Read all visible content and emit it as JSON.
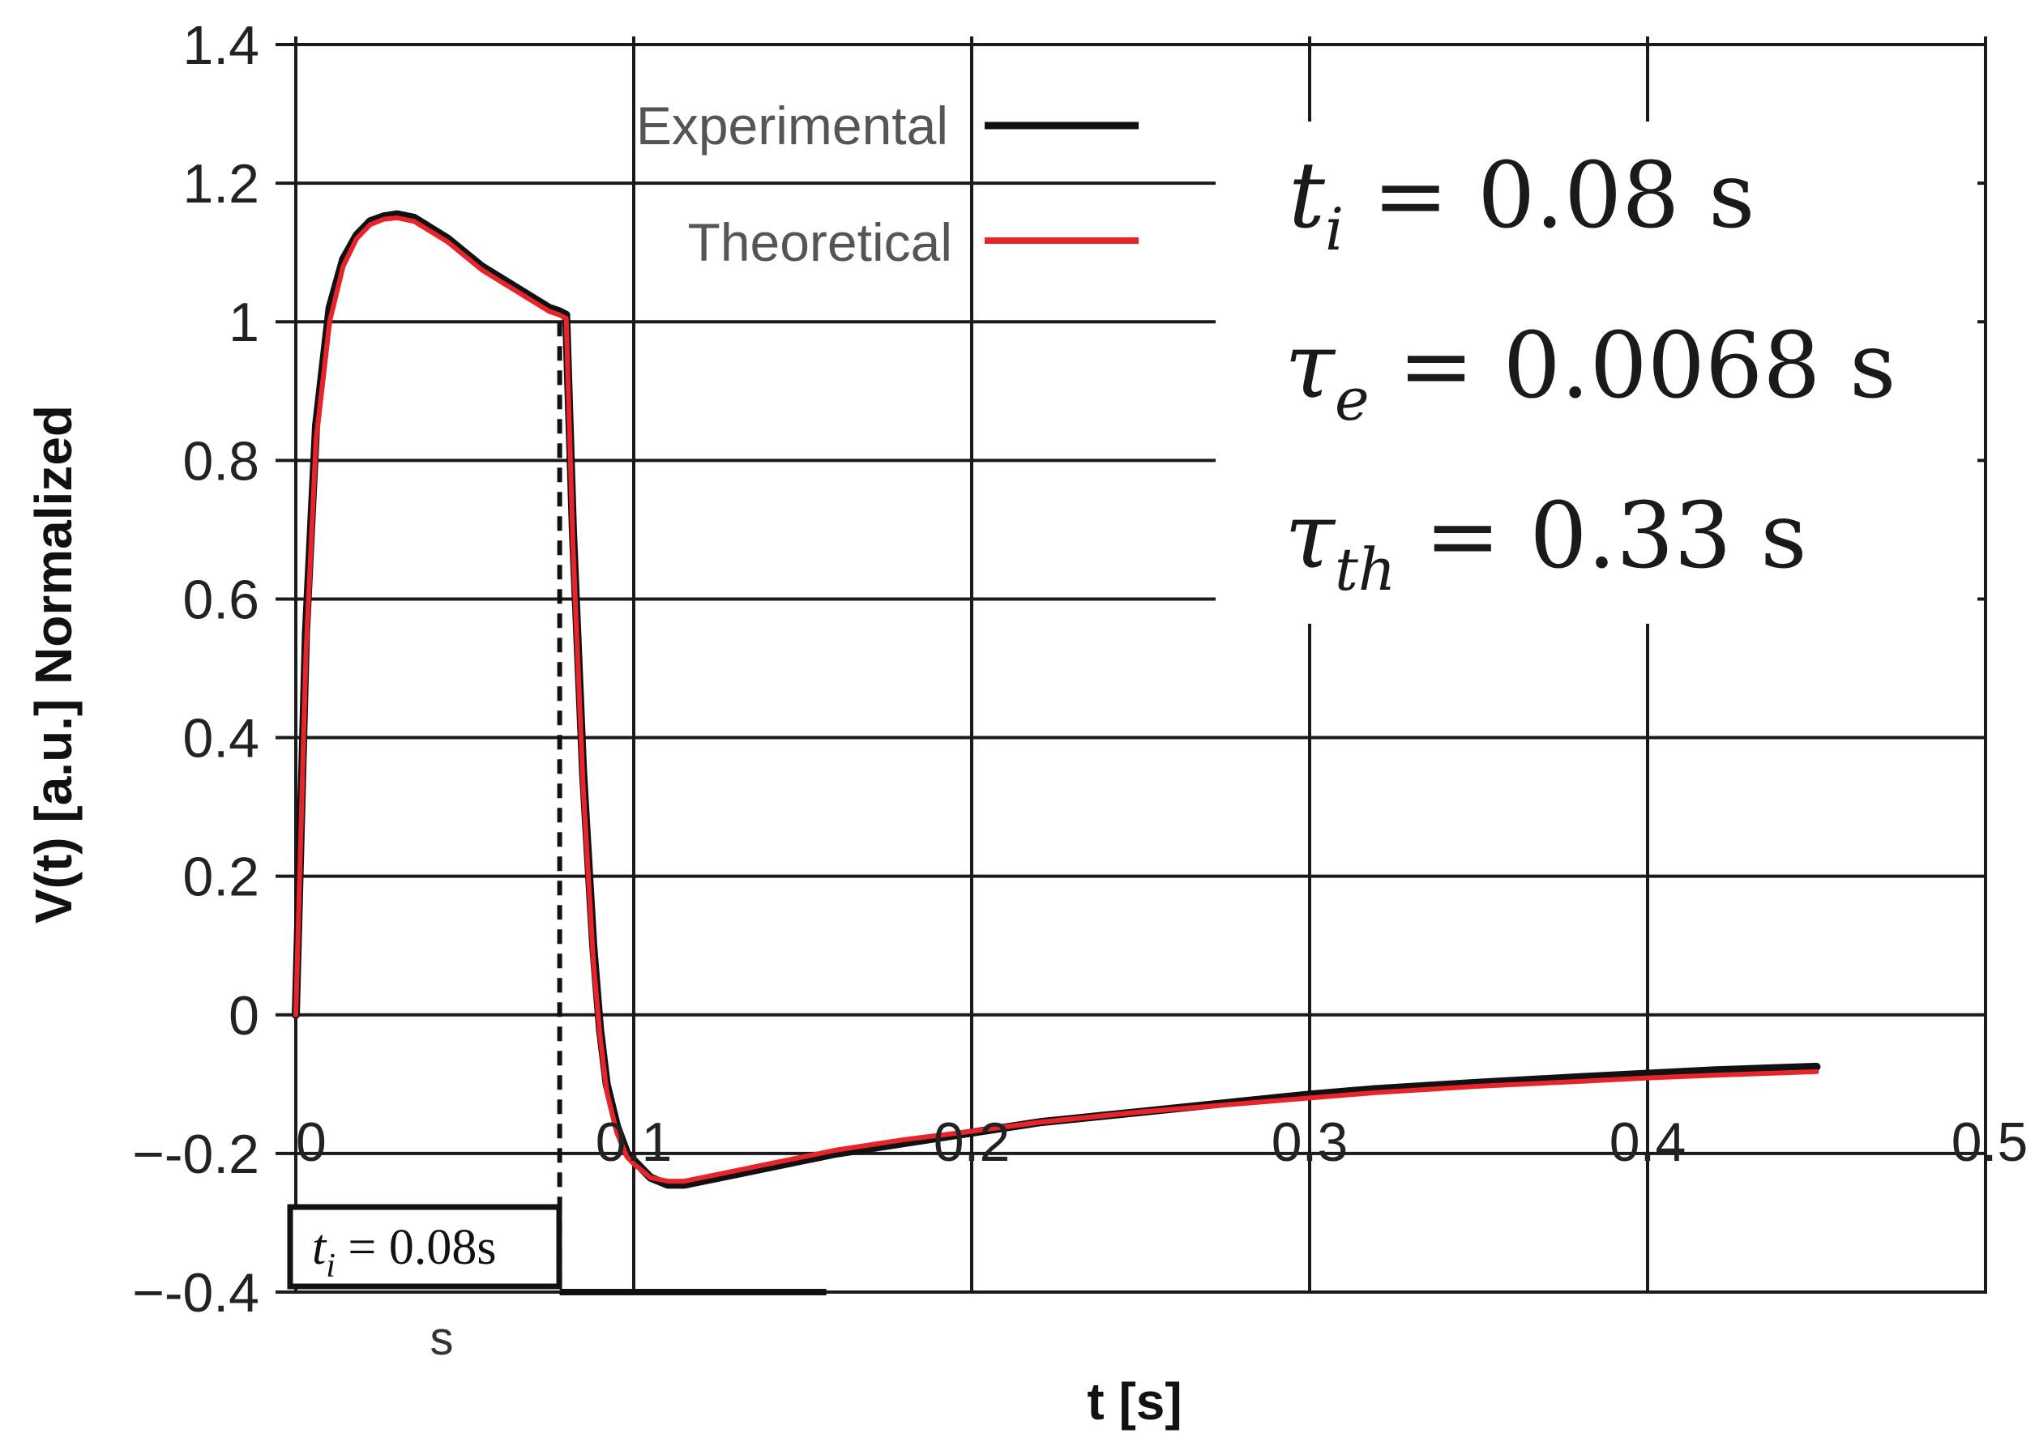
{
  "chart_data": {
    "type": "line",
    "title": "",
    "xlabel": "t [s]",
    "ylabel": "V(t) [a.u.] Normalized",
    "xlim": [
      0,
      0.5
    ],
    "ylim": [
      -0.4,
      1.4
    ],
    "x_ticks": [
      0,
      0.1,
      0.2,
      0.3,
      0.4,
      0.5
    ],
    "x_tick_labels": [
      "0",
      "0.1",
      "0.2",
      "0.3",
      "0.4",
      "0.5"
    ],
    "y_ticks": [
      1.4,
      1.2,
      1,
      0.8,
      0.6,
      0.4,
      0.2,
      0,
      -0.2,
      -0.4
    ],
    "y_tick_labels": [
      "1.4",
      "1.2",
      "1",
      "0.8",
      "0.6",
      "0.4",
      "0.2",
      "0",
      "−-0.2",
      "−-0.4"
    ],
    "grid": true,
    "legend_position": "top-center",
    "series": [
      {
        "name": "Experimental",
        "color": "#111111",
        "x": [
          0,
          0.003,
          0.006,
          0.01,
          0.014,
          0.018,
          0.022,
          0.026,
          0.03,
          0.035,
          0.04,
          0.045,
          0.05,
          0.055,
          0.06,
          0.065,
          0.07,
          0.075,
          0.078,
          0.08,
          0.082,
          0.085,
          0.088,
          0.09,
          0.092,
          0.095,
          0.098,
          0.1,
          0.105,
          0.11,
          0.115,
          0.12,
          0.125,
          0.13,
          0.14,
          0.15,
          0.16,
          0.18,
          0.2,
          0.22,
          0.25,
          0.28,
          0.3,
          0.32,
          0.35,
          0.38,
          0.4,
          0.42,
          0.45
        ],
        "y": [
          0,
          0.55,
          0.85,
          1.02,
          1.09,
          1.125,
          1.145,
          1.152,
          1.155,
          1.15,
          1.135,
          1.12,
          1.1,
          1.08,
          1.065,
          1.05,
          1.035,
          1.02,
          1.015,
          1.01,
          0.7,
          0.35,
          0.1,
          -0.02,
          -0.1,
          -0.16,
          -0.2,
          -0.21,
          -0.235,
          -0.245,
          -0.245,
          -0.24,
          -0.235,
          -0.23,
          -0.22,
          -0.21,
          -0.2,
          -0.185,
          -0.17,
          -0.155,
          -0.14,
          -0.125,
          -0.115,
          -0.107,
          -0.098,
          -0.09,
          -0.085,
          -0.08,
          -0.075
        ]
      },
      {
        "name": "Theoretical",
        "color": "#e8242b",
        "x": [
          0,
          0.003,
          0.006,
          0.01,
          0.014,
          0.018,
          0.022,
          0.026,
          0.03,
          0.035,
          0.04,
          0.045,
          0.05,
          0.055,
          0.06,
          0.065,
          0.07,
          0.075,
          0.078,
          0.08,
          0.082,
          0.085,
          0.088,
          0.09,
          0.092,
          0.095,
          0.098,
          0.1,
          0.105,
          0.11,
          0.115,
          0.12,
          0.125,
          0.13,
          0.14,
          0.15,
          0.16,
          0.18,
          0.2,
          0.22,
          0.25,
          0.28,
          0.3,
          0.32,
          0.35,
          0.38,
          0.4,
          0.42,
          0.45
        ],
        "y": [
          0,
          0.52,
          0.83,
          1.0,
          1.08,
          1.12,
          1.14,
          1.148,
          1.15,
          1.145,
          1.13,
          1.115,
          1.095,
          1.075,
          1.06,
          1.045,
          1.03,
          1.015,
          1.01,
          1.005,
          0.68,
          0.33,
          0.08,
          -0.03,
          -0.11,
          -0.17,
          -0.205,
          -0.215,
          -0.235,
          -0.24,
          -0.24,
          -0.235,
          -0.23,
          -0.225,
          -0.215,
          -0.205,
          -0.195,
          -0.18,
          -0.168,
          -0.155,
          -0.14,
          -0.128,
          -0.12,
          -0.112,
          -0.103,
          -0.096,
          -0.091,
          -0.087,
          -0.082
        ]
      }
    ],
    "annotations": {
      "pulse_end_time": 0.08,
      "pulse_label_main": "t",
      "pulse_label_sub": "i",
      "pulse_label_rest": " = 0.08s",
      "below_box_label": "s"
    },
    "parameters": [
      {
        "symbol": "t",
        "subscript": "i",
        "value": " = 0.08 s"
      },
      {
        "symbol": "τ",
        "subscript": "e",
        "value": " = 0.0068 s"
      },
      {
        "symbol": "τ",
        "subscript": "th",
        "value": " = 0.33 s"
      }
    ]
  }
}
